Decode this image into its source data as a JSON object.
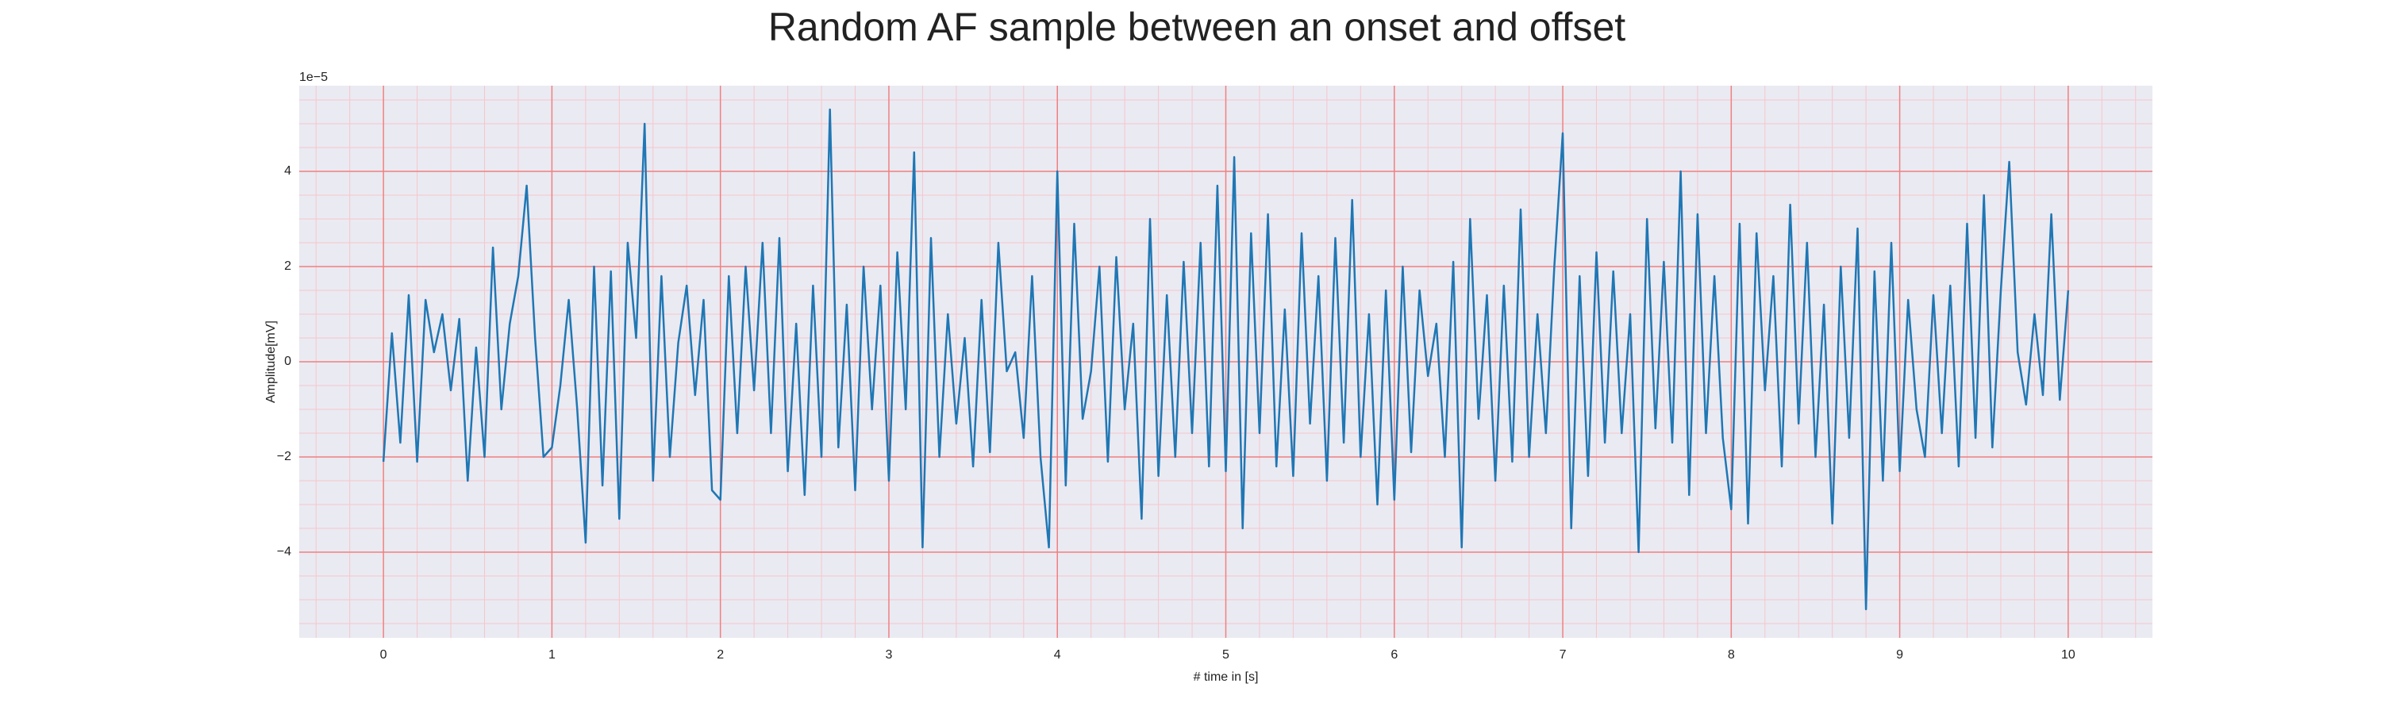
{
  "chart_data": {
    "type": "line",
    "title": "Random AF sample between an onset and offset",
    "xlabel": "# time in [s]",
    "ylabel": "Amplitude[mV]",
    "offset_text": "1e−5",
    "color": "#1f77b4",
    "background": "#eaeaf2",
    "grid": true,
    "grid_color": "#f08080",
    "minor_grid_color": "#f6c6cc",
    "xlim": [
      -0.5,
      10.5
    ],
    "ylim": [
      -5.8,
      5.8
    ],
    "xticks": [
      0,
      1,
      2,
      3,
      4,
      5,
      6,
      7,
      8,
      9,
      10
    ],
    "yticks": [
      {
        "value": -4,
        "label": "−4"
      },
      {
        "value": -2,
        "label": "−2"
      },
      0,
      2,
      4
    ],
    "xminorticks": [
      -0.4,
      -0.2,
      0.2,
      0.4,
      0.6,
      0.8,
      1.2,
      1.4,
      1.6,
      1.8,
      2.2,
      2.4,
      2.6,
      2.8,
      3.2,
      3.4,
      3.6,
      3.8,
      4.2,
      4.4,
      4.6,
      4.8,
      5.2,
      5.4,
      5.6,
      5.8,
      6.2,
      6.4,
      6.6,
      6.8,
      7.2,
      7.4,
      7.6,
      7.8,
      8.2,
      8.4,
      8.6,
      8.8,
      9.2,
      9.4,
      9.6,
      9.8,
      10.2,
      10.4
    ],
    "yminorticks": [
      -5.5,
      -5,
      -4.5,
      -3.5,
      -3,
      -2.5,
      -1.5,
      -1,
      -0.5,
      0.5,
      1,
      1.5,
      2.5,
      3,
      3.5,
      4.5,
      5,
      5.5
    ],
    "x": [
      0,
      0.05,
      0.1,
      0.15,
      0.2,
      0.25,
      0.3,
      0.35,
      0.4,
      0.45,
      0.5,
      0.55,
      0.6,
      0.65,
      0.7,
      0.75,
      0.8,
      0.85,
      0.9,
      0.95,
      1,
      1.05,
      1.1,
      1.15,
      1.2,
      1.25,
      1.3,
      1.35,
      1.4,
      1.45,
      1.5,
      1.55,
      1.6,
      1.65,
      1.7,
      1.75,
      1.8,
      1.85,
      1.9,
      1.95,
      2,
      2.05,
      2.1,
      2.15,
      2.2,
      2.25,
      2.3,
      2.35,
      2.4,
      2.45,
      2.5,
      2.55,
      2.6,
      2.65,
      2.7,
      2.75,
      2.8,
      2.85,
      2.9,
      2.95,
      3,
      3.05,
      3.1,
      3.15,
      3.2,
      3.25,
      3.3,
      3.35,
      3.4,
      3.45,
      3.5,
      3.55,
      3.6,
      3.65,
      3.7,
      3.75,
      3.8,
      3.85,
      3.9,
      3.95,
      4,
      4.05,
      4.1,
      4.15,
      4.2,
      4.25,
      4.3,
      4.35,
      4.4,
      4.45,
      4.5,
      4.55,
      4.6,
      4.65,
      4.7,
      4.75,
      4.8,
      4.85,
      4.9,
      4.95,
      5,
      5.05,
      5.1,
      5.15,
      5.2,
      5.25,
      5.3,
      5.35,
      5.4,
      5.45,
      5.5,
      5.55,
      5.6,
      5.65,
      5.7,
      5.75,
      5.8,
      5.85,
      5.9,
      5.95,
      6,
      6.05,
      6.1,
      6.15,
      6.2,
      6.25,
      6.3,
      6.35,
      6.4,
      6.45,
      6.5,
      6.55,
      6.6,
      6.65,
      6.7,
      6.75,
      6.8,
      6.85,
      6.9,
      6.95,
      7,
      7.05,
      7.1,
      7.15,
      7.2,
      7.25,
      7.3,
      7.35,
      7.4,
      7.45,
      7.5,
      7.55,
      7.6,
      7.65,
      7.7,
      7.75,
      7.8,
      7.85,
      7.9,
      7.95,
      8,
      8.05,
      8.1,
      8.15,
      8.2,
      8.25,
      8.3,
      8.35,
      8.4,
      8.45,
      8.5,
      8.55,
      8.6,
      8.65,
      8.7,
      8.75,
      8.8,
      8.85,
      8.9,
      8.95,
      9,
      9.05,
      9.1,
      9.15,
      9.2,
      9.25,
      9.3,
      9.35,
      9.4,
      9.45,
      9.5,
      9.55,
      9.6,
      9.65,
      9.7,
      9.75,
      9.8,
      9.85,
      9.9,
      9.95,
      10
    ],
    "values": [
      -2.1,
      0.6,
      -1.7,
      1.4,
      -2.1,
      1.3,
      0.2,
      1.0,
      -0.6,
      0.9,
      -2.5,
      0.3,
      -2.0,
      2.4,
      -1.0,
      0.8,
      1.8,
      3.7,
      0.5,
      -2.0,
      -1.8,
      -0.5,
      1.3,
      -1.0,
      -3.8,
      2.0,
      -2.6,
      1.9,
      -3.3,
      2.5,
      0.5,
      5.0,
      -2.5,
      1.8,
      -2.0,
      0.4,
      1.6,
      -0.7,
      1.3,
      -2.7,
      -2.9,
      1.8,
      -1.5,
      2.0,
      -0.6,
      2.5,
      -1.5,
      2.6,
      -2.3,
      0.8,
      -2.8,
      1.6,
      -2.0,
      5.3,
      -1.8,
      1.2,
      -2.7,
      2.0,
      -1.0,
      1.6,
      -2.5,
      2.3,
      -1.0,
      4.4,
      -3.9,
      2.6,
      -2.0,
      1.0,
      -1.3,
      0.5,
      -2.2,
      1.3,
      -1.9,
      2.5,
      -0.2,
      0.2,
      -1.6,
      1.8,
      -2.0,
      -3.9,
      4.0,
      -2.6,
      2.9,
      -1.2,
      -0.2,
      2.0,
      -2.1,
      2.2,
      -1.0,
      0.8,
      -3.3,
      3.0,
      -2.4,
      1.4,
      -2.0,
      2.1,
      -1.5,
      2.5,
      -2.2,
      3.7,
      -2.3,
      4.3,
      -3.5,
      2.7,
      -1.5,
      3.1,
      -2.2,
      1.1,
      -2.4,
      2.7,
      -1.3,
      1.8,
      -2.5,
      2.6,
      -1.7,
      3.4,
      -2.0,
      1.0,
      -3.0,
      1.5,
      -2.9,
      2.0,
      -1.9,
      1.5,
      -0.3,
      0.8,
      -2.0,
      2.1,
      -3.9,
      3.0,
      -1.2,
      1.4,
      -2.5,
      1.6,
      -2.1,
      3.2,
      -2.0,
      1.0,
      -1.5,
      2.0,
      4.8,
      -3.5,
      1.8,
      -2.4,
      2.3,
      -1.7,
      1.9,
      -1.5,
      1.0,
      -4.0,
      3.0,
      -1.4,
      2.1,
      -1.7,
      4.0,
      -2.8,
      3.1,
      -1.5,
      1.8,
      -1.6,
      -3.1,
      2.9,
      -3.4,
      2.7,
      -0.6,
      1.8,
      -2.2,
      3.3,
      -1.3,
      2.5,
      -2.0,
      1.2,
      -3.4,
      2.0,
      -1.6,
      2.8,
      -5.2,
      1.9,
      -2.5,
      2.5,
      -2.3,
      1.3,
      -1.0,
      -2.0,
      1.4,
      -1.5,
      1.6,
      -2.2,
      2.9,
      -1.6,
      3.5,
      -1.8,
      1.5,
      4.2,
      0.2,
      -0.9,
      1.0,
      -0.7,
      3.1,
      -0.8,
      1.5
    ]
  }
}
